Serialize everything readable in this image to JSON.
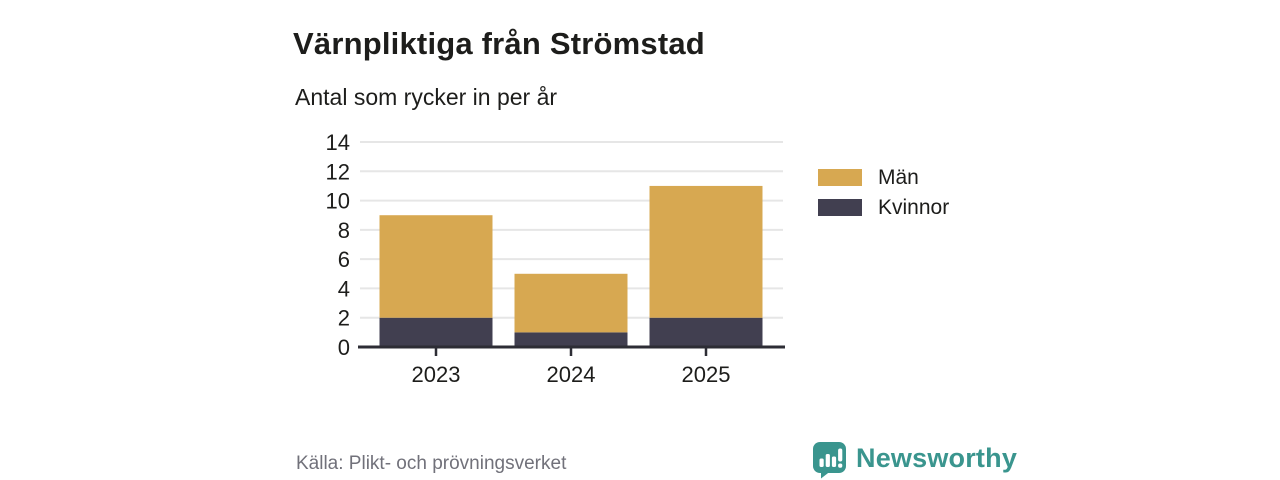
{
  "title": "Värnpliktiga från Strömstad",
  "subtitle": "Antal som rycker in per år",
  "source": "Källa: Plikt- och prövningsverket",
  "branding": {
    "name": "Newsworthy",
    "color": "#3a958e",
    "icon": "speech-bubble-bar-chart-icon"
  },
  "colors": {
    "men": "#d7a851",
    "women": "#413f50",
    "axis": "#2d2d35",
    "grid": "#e6e6e6",
    "text": "#1d1d1b",
    "muted": "#71717a"
  },
  "legend": [
    {
      "label": "Män",
      "color": "#d7a851"
    },
    {
      "label": "Kvinnor",
      "color": "#413f50"
    }
  ],
  "chart_data": {
    "type": "bar",
    "stacked": true,
    "title": "Värnpliktiga från Strömstad",
    "subtitle": "Antal som rycker in per år",
    "categories": [
      "2023",
      "2024",
      "2025"
    ],
    "series": [
      {
        "name": "Kvinnor",
        "color": "#413f50",
        "values": [
          2,
          1,
          2
        ]
      },
      {
        "name": "Män",
        "color": "#d7a851",
        "values": [
          7,
          4,
          9
        ]
      }
    ],
    "totals": [
      9,
      5,
      11
    ],
    "xlabel": "",
    "ylabel": "",
    "ylim": [
      0,
      14
    ],
    "ytick_step": 2,
    "yticks": [
      0,
      2,
      4,
      6,
      8,
      10,
      12,
      14
    ],
    "grid": true,
    "legend_position": "right",
    "source": "Källa: Plikt- och prövningsverket"
  }
}
